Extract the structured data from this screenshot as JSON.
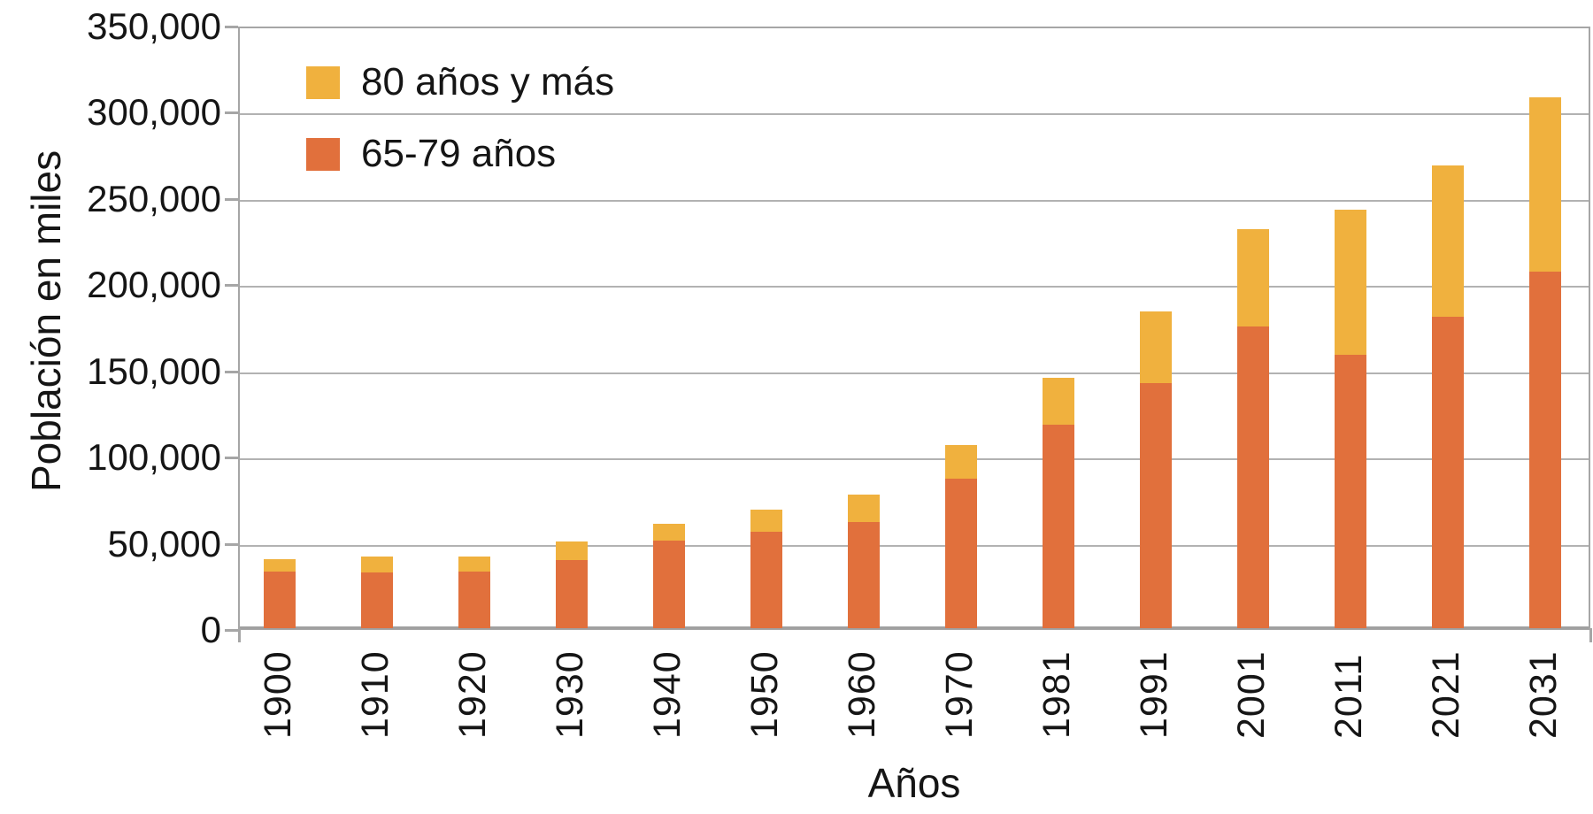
{
  "chart_data": {
    "type": "bar",
    "stacked": true,
    "title": "",
    "xlabel": "Años",
    "ylabel": "Población en miles",
    "categories": [
      "1900",
      "1910",
      "1920",
      "1930",
      "1940",
      "1950",
      "1960",
      "1970",
      "1981",
      "1991",
      "2001",
      "2011",
      "2021",
      "2031"
    ],
    "series": [
      {
        "name": "65-79 años",
        "color": "#E1703C",
        "values": [
          33000,
          32500,
          33000,
          39500,
          51000,
          56000,
          61500,
          86500,
          118000,
          142000,
          175000,
          158500,
          180500,
          207000
        ]
      },
      {
        "name": "80 años y más",
        "color": "#F0B13E",
        "values": [
          7000,
          9000,
          8500,
          11000,
          9500,
          13000,
          16000,
          19500,
          27000,
          41500,
          56500,
          84000,
          88000,
          101000
        ]
      }
    ],
    "totals": [
      40000,
      41500,
      41500,
      50500,
      60500,
      69000,
      77500,
      106000,
      145000,
      183500,
      231500,
      242500,
      268500,
      308000
    ],
    "y_axis": {
      "min": 0,
      "max": 350000,
      "step": 50000,
      "tick_labels": [
        "0",
        "50,000",
        "100,000",
        "150,000",
        "200,000",
        "250,000",
        "300,000",
        "350,000"
      ]
    },
    "legend": [
      {
        "label": "80 años y más",
        "series": "80 años y más",
        "color": "#F0B13E"
      },
      {
        "label": "65-79 años",
        "series": "65-79 años",
        "color": "#E1703C"
      }
    ],
    "legend_position": "inside-top-left",
    "grid": true,
    "gridline_color": "#b2b2b2",
    "axis_color": "#a6a6a6",
    "text_color": "#151515"
  }
}
